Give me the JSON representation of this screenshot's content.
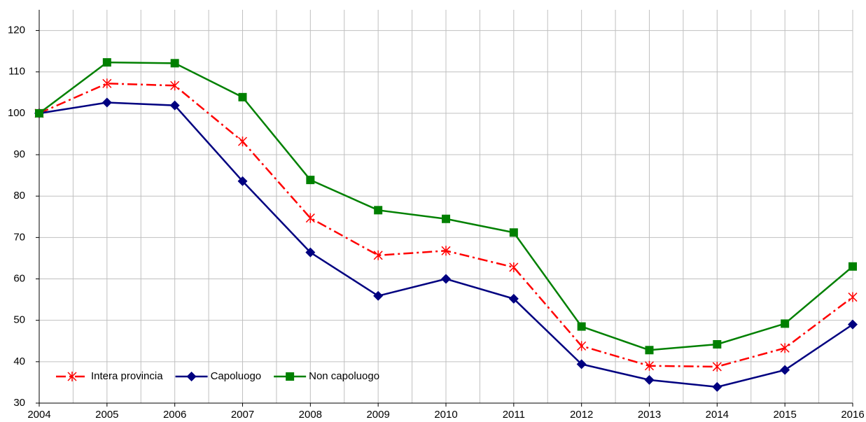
{
  "chart_data": {
    "type": "line",
    "x": [
      2004,
      2005,
      2006,
      2007,
      2008,
      2009,
      2010,
      2011,
      2012,
      2013,
      2014,
      2015,
      2016
    ],
    "xlim": [
      2004,
      2016
    ],
    "xticks": [
      2004,
      2005,
      2006,
      2007,
      2008,
      2009,
      2010,
      2011,
      2012,
      2013,
      2014,
      2015,
      2016
    ],
    "ylim": [
      30,
      125
    ],
    "yticks": [
      30,
      40,
      50,
      60,
      70,
      80,
      90,
      100,
      110,
      120
    ],
    "grid": true,
    "legend": "lower-left",
    "series": [
      {
        "name": "Intera provincia",
        "color": "#ff0000",
        "marker": "star",
        "dash": "dashdot",
        "values": [
          100,
          107.2,
          106.7,
          93.2,
          74.7,
          65.7,
          66.8,
          62.8,
          43.8,
          39,
          38.8,
          43.3,
          55.6
        ]
      },
      {
        "name": "Capoluogo",
        "color": "#000080",
        "marker": "diamond",
        "dash": "solid",
        "values": [
          100,
          102.6,
          101.9,
          83.6,
          66.4,
          55.9,
          60,
          55.2,
          39.4,
          35.6,
          33.9,
          38,
          49
        ]
      },
      {
        "name": "Non capoluogo",
        "color": "#008000",
        "marker": "square",
        "dash": "solid",
        "values": [
          100,
          112.3,
          112.1,
          103.9,
          83.9,
          76.6,
          74.5,
          71.2,
          48.5,
          42.8,
          44.2,
          49.2,
          63
        ]
      }
    ]
  }
}
